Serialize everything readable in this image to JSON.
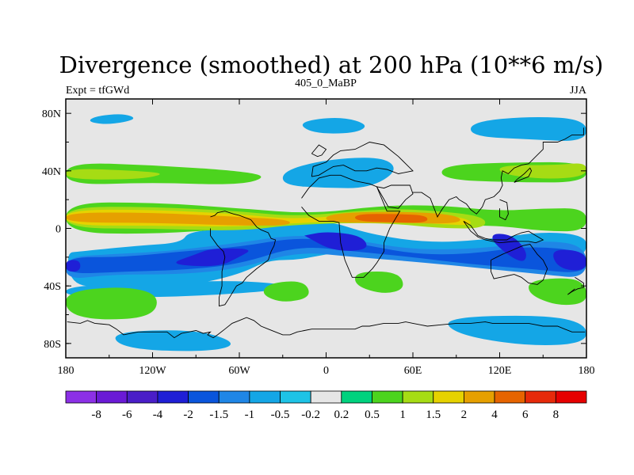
{
  "chart_data": {
    "type": "heatmap",
    "title": "Divergence (smoothed) at 200 hPa (10**6 m/s)",
    "subtitle_left": "Expt = tfGWd",
    "subtitle_center": "405_0_MaBP",
    "subtitle_right": "JJA",
    "projection": "cylindrical equidistant",
    "x_range": [
      -180,
      180
    ],
    "y_range": [
      -90,
      90
    ],
    "x_ticks": [
      {
        "value": -180,
        "label": "180"
      },
      {
        "value": -120,
        "label": "120W"
      },
      {
        "value": -60,
        "label": "60W"
      },
      {
        "value": 0,
        "label": "0"
      },
      {
        "value": 60,
        "label": "60E"
      },
      {
        "value": 120,
        "label": "120E"
      },
      {
        "value": 180,
        "label": "180"
      }
    ],
    "y_ticks": [
      {
        "value": 80,
        "label": "80N"
      },
      {
        "value": 40,
        "label": "40N"
      },
      {
        "value": 0,
        "label": "0"
      },
      {
        "value": -40,
        "label": "40S"
      },
      {
        "value": -80,
        "label": "80S"
      }
    ],
    "colorbar": {
      "labels": [
        "-8",
        "-6",
        "-4",
        "-2",
        "-1.5",
        "-1",
        "-0.5",
        "-0.2",
        "0.2",
        "0.5",
        "1",
        "1.5",
        "2",
        "4",
        "6",
        "8"
      ],
      "colors": [
        "#8c30e6",
        "#6a1ad6",
        "#4a1ec8",
        "#1f1fd6",
        "#0a55dc",
        "#1f86e6",
        "#14a6e6",
        "#1ec3e6",
        "#e6e6e6",
        "#00d27e",
        "#4cd41e",
        "#a6dc14",
        "#e6d200",
        "#e6a000",
        "#e66400",
        "#e62a0a",
        "#e60000"
      ]
    },
    "features": [
      {
        "level": "-0.5",
        "lon": [
          -100,
          -130,
          -170,
          -180,
          -175,
          -140,
          -95,
          -60,
          -40,
          -20,
          0,
          20,
          60,
          90,
          130,
          170,
          180,
          180,
          150,
          110,
          70,
          30,
          0,
          -30,
          -60,
          -95
        ],
        "lat": [
          -10,
          -12,
          -16,
          -17,
          -42,
          -38,
          -40,
          -32,
          -22,
          -22,
          -18,
          -15,
          -20,
          -20,
          -22,
          -20,
          -17,
          -5,
          -2,
          -8,
          -10,
          -4,
          6,
          4,
          0,
          -2
        ]
      },
      {
        "level": "-1",
        "lon": [
          -110,
          -150,
          -180,
          -180,
          -150,
          -100,
          -60,
          -20,
          20,
          60,
          110,
          150,
          180,
          180,
          150,
          110,
          60,
          20,
          -20,
          -60
        ],
        "lat": [
          -16,
          -18,
          -20,
          -36,
          -32,
          -32,
          -28,
          -16,
          -20,
          -23,
          -28,
          -32,
          -35,
          -12,
          -8,
          -14,
          -15,
          -8,
          -4,
          -10
        ]
      },
      {
        "level": "-1.5",
        "lon": [
          -140,
          -180,
          -180,
          -140,
          -100,
          -60,
          -20,
          20,
          60,
          100,
          140,
          180,
          180,
          140,
          100,
          60,
          20,
          -20,
          -60,
          -100
        ],
        "lat": [
          -20,
          -20,
          -32,
          -30,
          -29,
          -25,
          -12,
          -16,
          -20,
          -25,
          -28,
          -32,
          -16,
          -12,
          -18,
          -18,
          -10,
          -6,
          -13,
          -16
        ]
      },
      {
        "level": "-2",
        "lon": [
          -90,
          -110,
          -75,
          -60,
          -50,
          -80
        ],
        "lat": [
          -18,
          -25,
          -27,
          -20,
          -14,
          -14
        ]
      },
      {
        "level": "-2",
        "lon": [
          -15,
          5,
          30,
          25,
          0,
          -15
        ],
        "lat": [
          -5,
          -16,
          -15,
          -5,
          -2,
          -5
        ]
      },
      {
        "level": "-2",
        "lon": [
          115,
          130,
          140,
          135,
          115
        ],
        "lat": [
          -3,
          -5,
          -18,
          -25,
          -10
        ]
      },
      {
        "level": "-2",
        "lon": [
          155,
          180,
          180,
          160
        ],
        "lat": [
          -14,
          -16,
          -30,
          -28
        ]
      },
      {
        "level": "-2",
        "lon": [
          -180,
          -170,
          -170,
          -180
        ],
        "lat": [
          -22,
          -22,
          -30,
          -30
        ]
      },
      {
        "level": "0.5",
        "lon": [
          -180,
          -120,
          -60,
          -10,
          40,
          80,
          120,
          150,
          180,
          180,
          150,
          120,
          80,
          40,
          -10,
          -60,
          -120,
          -180
        ],
        "lat": [
          18,
          18,
          14,
          10,
          16,
          16,
          12,
          14,
          14,
          -2,
          -2,
          2,
          2,
          4,
          6,
          0,
          -4,
          -3
        ]
      },
      {
        "level": "1",
        "lon": [
          -180,
          -120,
          -60,
          -20,
          40,
          80,
          110,
          110,
          80,
          40,
          -20,
          -60,
          -120,
          -180
        ],
        "lat": [
          15,
          15,
          12,
          8,
          14,
          12,
          8,
          0,
          0,
          4,
          3,
          -2,
          0,
          0
        ]
      },
      {
        "level": "1.5",
        "lon": [
          -180,
          -120,
          -60,
          -20,
          40,
          80,
          100,
          100,
          80,
          40,
          -20,
          -60,
          -120,
          -180
        ],
        "lat": [
          13,
          13,
          10,
          6,
          12,
          10,
          6,
          2,
          3,
          5,
          4,
          1,
          2,
          2
        ]
      },
      {
        "level": "2",
        "lon": [
          -180,
          -120,
          -60,
          -25,
          -25,
          -60,
          -120,
          -180
        ],
        "lat": [
          11,
          11,
          8,
          6,
          2,
          2,
          4,
          4
        ]
      },
      {
        "level": "2",
        "lon": [
          0,
          40,
          90,
          95,
          40,
          0
        ],
        "lat": [
          10,
          12,
          10,
          3,
          4,
          4
        ]
      },
      {
        "level": "4",
        "lon": [
          20,
          50,
          70,
          70,
          50,
          20
        ],
        "lat": [
          10,
          10,
          9,
          4,
          4,
          5
        ]
      },
      {
        "level": "0.5",
        "lon": [
          -180,
          -120,
          -60,
          -40,
          -60,
          -120,
          -180
        ],
        "lat": [
          46,
          44,
          40,
          36,
          30,
          32,
          30
        ]
      },
      {
        "level": "1",
        "lon": [
          -180,
          -130,
          -110,
          -130,
          -180
        ],
        "lat": [
          42,
          40,
          38,
          34,
          34
        ]
      },
      {
        "level": "0.5",
        "lon": [
          80,
          130,
          180,
          180,
          130,
          80
        ],
        "lat": [
          44,
          46,
          46,
          32,
          32,
          34
        ]
      },
      {
        "level": "1",
        "lon": [
          120,
          160,
          180,
          180,
          150,
          120
        ],
        "lat": [
          44,
          44,
          46,
          36,
          34,
          38
        ]
      },
      {
        "level": "0.5",
        "lon": [
          20,
          40,
          45,
          40,
          20
        ],
        "lat": [
          44,
          46,
          38,
          34,
          36
        ]
      },
      {
        "level": "-0.5",
        "lon": [
          -30,
          0,
          40,
          50,
          30,
          0,
          -30
        ],
        "lat": [
          40,
          48,
          50,
          40,
          28,
          28,
          30
        ]
      },
      {
        "level": "-0.5",
        "lon": [
          -160,
          -140,
          -130,
          -150,
          -165
        ],
        "lat": [
          78,
          80,
          76,
          72,
          74
        ]
      },
      {
        "level": "-0.5",
        "lon": [
          -20,
          10,
          30,
          20,
          -10
        ],
        "lat": [
          74,
          78,
          72,
          66,
          66
        ]
      },
      {
        "level": "-0.5",
        "lon": [
          100,
          140,
          180,
          180,
          140,
          100
        ],
        "lat": [
          74,
          78,
          76,
          60,
          62,
          64
        ]
      },
      {
        "level": "-0.5",
        "lon": [
          -180,
          -110,
          -40,
          -20,
          -60,
          -120,
          -180
        ],
        "lat": [
          -48,
          -48,
          -44,
          -40,
          -36,
          -38,
          -40
        ]
      },
      {
        "level": "0.5",
        "lon": [
          -180,
          -140,
          -115,
          -120,
          -160,
          -180
        ],
        "lat": [
          -44,
          -40,
          -46,
          -62,
          -64,
          -58
        ]
      },
      {
        "level": "0.5",
        "lon": [
          -40,
          -15,
          -10,
          -30,
          -45
        ],
        "lat": [
          -38,
          -36,
          -48,
          -52,
          -46
        ]
      },
      {
        "level": "0.5",
        "lon": [
          20,
          50,
          55,
          40,
          20
        ],
        "lat": [
          -30,
          -30,
          -42,
          -46,
          -40
        ]
      },
      {
        "level": "0.5",
        "lon": [
          140,
          170,
          180,
          180,
          160,
          140
        ],
        "lat": [
          -36,
          -34,
          -40,
          -52,
          -54,
          -46
        ]
      },
      {
        "level": "-0.5",
        "lon": [
          -150,
          -90,
          -60,
          -80,
          -140
        ],
        "lat": [
          -72,
          -70,
          -80,
          -86,
          -84
        ]
      },
      {
        "level": "-0.5",
        "lon": [
          80,
          150,
          180,
          180,
          140,
          90
        ],
        "lat": [
          -62,
          -60,
          -66,
          -80,
          -82,
          -74
        ]
      }
    ],
    "coastlines": [
      {
        "lon": [
          -179,
          -170,
          -165,
          -160,
          -150,
          -145,
          -140,
          -130,
          -120,
          -110,
          -105,
          -100,
          -95,
          -90,
          -85,
          -80,
          -82,
          -78,
          -75,
          -70,
          -65,
          -60,
          -55,
          -50,
          -45,
          -40,
          -35,
          -30,
          -25,
          -20,
          -15,
          -10,
          -5,
          0,
          5,
          10,
          15,
          20,
          25,
          30,
          35,
          40,
          45,
          50,
          55,
          60,
          65,
          70,
          80,
          90,
          100,
          110,
          115,
          120,
          130,
          135,
          140,
          145,
          150,
          155,
          160,
          165,
          170,
          175,
          179
        ],
        "lat": [
          -65,
          -66,
          -64,
          -66,
          -67,
          -70,
          -74,
          -72,
          -72,
          -72,
          -76,
          -73,
          -72,
          -71,
          -73,
          -72,
          -74,
          -76,
          -74,
          -70,
          -66,
          -64,
          -62,
          -64,
          -68,
          -70,
          -72,
          -74,
          -74,
          -72,
          -71,
          -70,
          -70,
          -70,
          -70,
          -70,
          -70,
          -70,
          -68,
          -68,
          -67,
          -66,
          -66,
          -66,
          -65,
          -66,
          -67,
          -68,
          -67,
          -66,
          -66,
          -65,
          -66,
          -66,
          -66,
          -66,
          -66,
          -67,
          -68,
          -68,
          -68,
          -70,
          -72,
          -72,
          -72
        ]
      },
      {
        "lon": [
          -80,
          -77,
          -75,
          -70,
          -64,
          -60,
          -52,
          -48,
          -45,
          -40,
          -38,
          -35,
          -36,
          -38,
          -40,
          -48,
          -55,
          -58,
          -62,
          -65,
          -68,
          -70,
          -74,
          -74,
          -72,
          -72,
          -70,
          -71,
          -75,
          -80,
          -80
        ],
        "lat": [
          8,
          9,
          11,
          12,
          10,
          9,
          6,
          1,
          -1,
          -3,
          -7,
          -8,
          -12,
          -16,
          -22,
          -28,
          -34,
          -38,
          -40,
          -45,
          -50,
          -53,
          -54,
          -48,
          -40,
          -30,
          -20,
          -16,
          -12,
          -5,
          0
        ]
      },
      {
        "lon": [
          -17,
          -12,
          -5,
          3,
          10,
          20,
          30,
          35,
          42,
          51,
          44,
          40,
          40,
          35,
          32,
          26,
          18,
          13,
          10,
          9,
          5,
          -5,
          -12,
          -17
        ],
        "lat": [
          21,
          28,
          35,
          37,
          37,
          33,
          31,
          29,
          12,
          12,
          0,
          -10,
          -16,
          -24,
          -28,
          -34,
          -34,
          -22,
          -10,
          4,
          5,
          5,
          9,
          15
        ]
      },
      {
        "lon": [
          -10,
          -9,
          0,
          5,
          10,
          20,
          30,
          40,
          50,
          55,
          60,
          50,
          42,
          35,
          28,
          20,
          12,
          5,
          0,
          -5,
          -10
        ],
        "lat": [
          36,
          43,
          46,
          51,
          54,
          55,
          60,
          58,
          50,
          45,
          40,
          38,
          41,
          42,
          40,
          40,
          44,
          43,
          40,
          37,
          36
        ]
      },
      {
        "lon": [
          35,
          43,
          50,
          55,
          60,
          58,
          52,
          45,
          40,
          35
        ],
        "lat": [
          29,
          15,
          14,
          20,
          24,
          30,
          30,
          30,
          28,
          29
        ]
      },
      {
        "lon": [
          60,
          66,
          72,
          77,
          80,
          85,
          90,
          92,
          97,
          100,
          104,
          108,
          110,
          116,
          120,
          122,
          121,
          122,
          126,
          130,
          135,
          140,
          145,
          150,
          150,
          160,
          165,
          170,
          178,
          178
        ],
        "lat": [
          25,
          25,
          21,
          8,
          13,
          20,
          22,
          20,
          17,
          13,
          10,
          15,
          20,
          22,
          26,
          30,
          35,
          40,
          38,
          42,
          44,
          45,
          50,
          55,
          60,
          60,
          62,
          65,
          65,
          70
        ]
      },
      {
        "lon": [
          114,
          118,
          122,
          129,
          136,
          141,
          146,
          150,
          153,
          150,
          146,
          140,
          135,
          130,
          125,
          116,
          114,
          114
        ],
        "lat": [
          -22,
          -20,
          -18,
          -15,
          -12,
          -11,
          -18,
          -22,
          -28,
          -36,
          -39,
          -38,
          -34,
          -32,
          -33,
          -35,
          -30,
          -22
        ]
      },
      {
        "lon": [
          95,
          100,
          105,
          110,
          115,
          120,
          125,
          130,
          135,
          140,
          145,
          150,
          145,
          140,
          130,
          120,
          110,
          105,
          100,
          95
        ],
        "lat": [
          5,
          2,
          -5,
          -7,
          -8,
          -8,
          -8,
          -5,
          -3,
          -2,
          -5,
          -8,
          -10,
          -9,
          -9,
          -10,
          -8,
          -6,
          -2,
          5
        ]
      },
      {
        "lon": [
          172,
          175,
          178,
          178,
          174,
          170,
          167,
          172
        ],
        "lat": [
          -34,
          -36,
          -38,
          -41,
          -42,
          -44,
          -46,
          -42
        ]
      },
      {
        "lon": [
          120,
          125,
          126,
          124,
          120,
          120
        ],
        "lat": [
          20,
          18,
          10,
          6,
          8,
          14
        ]
      },
      {
        "lon": [
          130,
          135,
          140,
          142,
          141,
          137,
          132,
          130
        ],
        "lat": [
          32,
          34,
          36,
          40,
          42,
          38,
          34,
          32
        ]
      },
      {
        "lon": [
          -10,
          -5,
          0,
          -3,
          -6,
          -10
        ],
        "lat": [
          52,
          58,
          55,
          51,
          50,
          52
        ]
      }
    ]
  }
}
